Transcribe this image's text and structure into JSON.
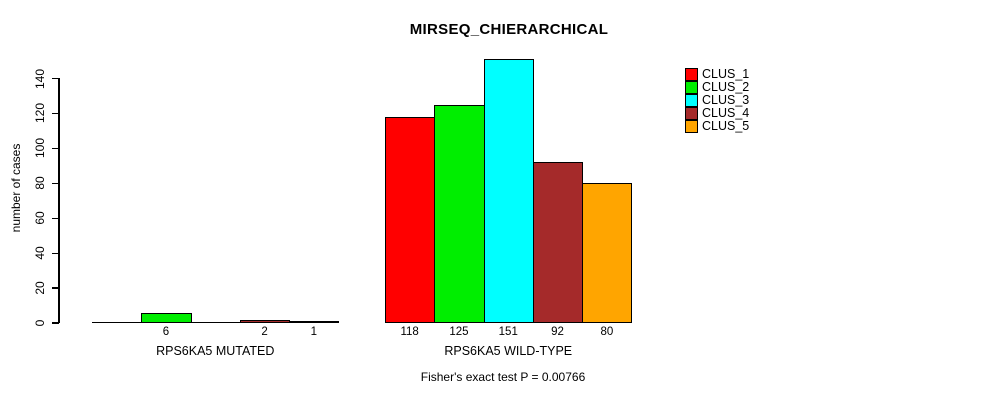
{
  "chart_data": {
    "type": "bar",
    "title": "MIRSEQ_CHIERARCHICAL",
    "ylabel": "number of cases",
    "xlabel": "",
    "yticks": [
      0,
      20,
      40,
      60,
      80,
      100,
      120,
      140
    ],
    "ylim": [
      0,
      140
    ],
    "grid": false,
    "legend_position": "top-right",
    "clusters": [
      {
        "name": "CLUS_1",
        "color": "#FF0000"
      },
      {
        "name": "CLUS_2",
        "color": "#00EE00"
      },
      {
        "name": "CLUS_3",
        "color": "#00FFFF"
      },
      {
        "name": "CLUS_4",
        "color": "#A52A2A"
      },
      {
        "name": "CLUS_5",
        "color": "#FFA500"
      }
    ],
    "groups": [
      {
        "label": "RPS6KA5 MUTATED",
        "values": [
          0,
          6,
          0,
          2,
          1
        ],
        "bar_labels": [
          "",
          "6",
          "",
          "2",
          "1"
        ]
      },
      {
        "label": "RPS6KA5 WILD-TYPE",
        "values": [
          118,
          125,
          151,
          92,
          80
        ],
        "bar_labels": [
          "118",
          "125",
          "151",
          "92",
          "80"
        ]
      }
    ],
    "annotation": "Fisher's exact test P = 0.00766"
  }
}
